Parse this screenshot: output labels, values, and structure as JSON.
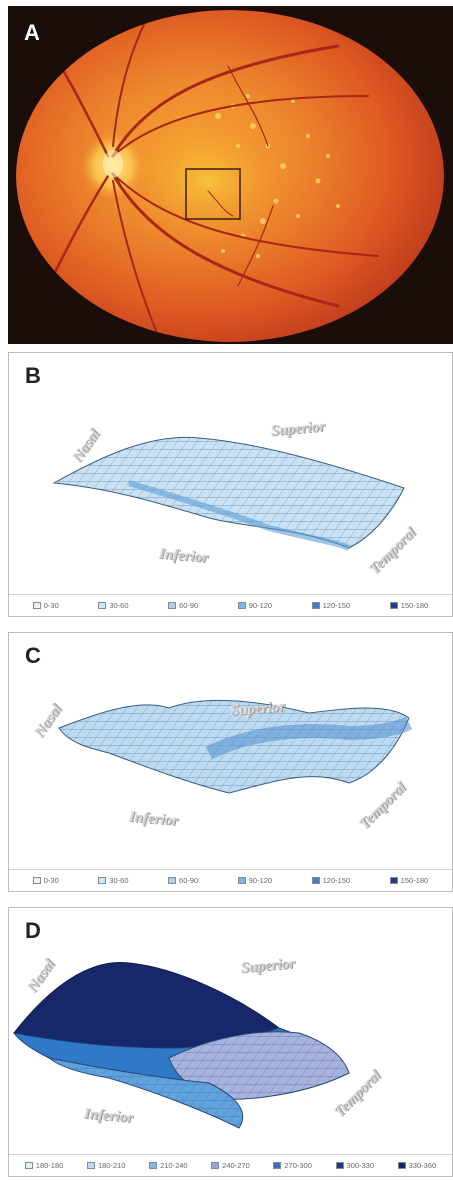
{
  "panels": {
    "a": {
      "letter": "A"
    },
    "b": {
      "letter": "B",
      "labels": {
        "nasal": "Nasal",
        "superior": "Superior",
        "inferior": "Inferior",
        "temporal": "Temporal"
      },
      "legend": [
        {
          "label": "0-30",
          "color": "#e8f3fb"
        },
        {
          "label": "30-60",
          "color": "#cfe6f6"
        },
        {
          "label": "60-90",
          "color": "#a9d3f0"
        },
        {
          "label": "90-120",
          "color": "#7bb6e2"
        },
        {
          "label": "120-150",
          "color": "#3f7fc4"
        },
        {
          "label": "150-180",
          "color": "#1c3c86"
        }
      ]
    },
    "c": {
      "letter": "C",
      "labels": {
        "nasal": "Nasal",
        "superior": "Superior",
        "inferior": "Inferior",
        "temporal": "Temporal"
      },
      "legend": [
        {
          "label": "0-30",
          "color": "#e8f3fb"
        },
        {
          "label": "30-60",
          "color": "#cfe6f6"
        },
        {
          "label": "60-90",
          "color": "#a9d3f0"
        },
        {
          "label": "90-120",
          "color": "#7bb6e2"
        },
        {
          "label": "120-150",
          "color": "#3f7fc4"
        },
        {
          "label": "150-180",
          "color": "#1c3c86"
        }
      ]
    },
    "d": {
      "letter": "D",
      "labels": {
        "nasal": "Nasal",
        "superior": "Superior",
        "inferior": "Inferior",
        "temporal": "Temporal"
      },
      "legend": [
        {
          "label": "180-180",
          "color": "#dfeefa"
        },
        {
          "label": "180-210",
          "color": "#bcdcf3"
        },
        {
          "label": "210-240",
          "color": "#7fb9e6"
        },
        {
          "label": "240-270",
          "color": "#9aa6d6"
        },
        {
          "label": "270-300",
          "color": "#3d6dbf"
        },
        {
          "label": "300-330",
          "color": "#1c3a8a"
        },
        {
          "label": "330-360",
          "color": "#15245e"
        }
      ]
    }
  }
}
